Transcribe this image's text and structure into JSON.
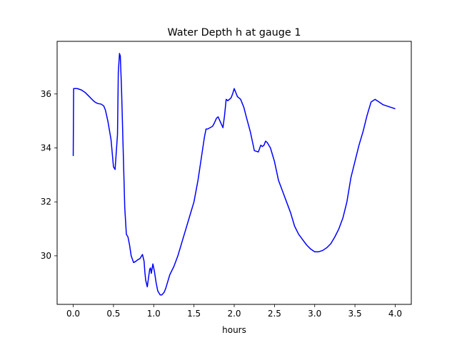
{
  "chart_data": {
    "type": "line",
    "title": "Water Depth h at gauge 1",
    "xlabel": "hours",
    "ylabel": "",
    "xlim": [
      -0.2,
      4.2
    ],
    "ylim": [
      28.2,
      37.95
    ],
    "xticks": [
      0.0,
      0.5,
      1.0,
      1.5,
      2.0,
      2.5,
      3.0,
      3.5,
      4.0
    ],
    "xtick_labels": [
      "0.0",
      "0.5",
      "1.0",
      "1.5",
      "2.0",
      "2.5",
      "3.0",
      "3.5",
      "4.0"
    ],
    "yticks": [
      30,
      32,
      34,
      36
    ],
    "ytick_labels": [
      "30",
      "32",
      "34",
      "36"
    ],
    "grid": false,
    "series": [
      {
        "color": "#0000ff",
        "x": [
          0.0,
          0.005,
          0.05,
          0.1,
          0.15,
          0.2,
          0.25,
          0.27,
          0.3,
          0.35,
          0.38,
          0.4,
          0.43,
          0.47,
          0.5,
          0.52,
          0.55,
          0.56,
          0.575,
          0.585,
          0.6,
          0.62,
          0.64,
          0.66,
          0.68,
          0.7,
          0.72,
          0.75,
          0.78,
          0.8,
          0.83,
          0.86,
          0.88,
          0.89,
          0.9,
          0.92,
          0.95,
          0.96,
          0.97,
          0.99,
          1.01,
          1.03,
          1.05,
          1.08,
          1.1,
          1.13,
          1.15,
          1.17,
          1.2,
          1.25,
          1.3,
          1.35,
          1.4,
          1.45,
          1.5,
          1.55,
          1.6,
          1.63,
          1.65,
          1.67,
          1.7,
          1.73,
          1.75,
          1.78,
          1.8,
          1.83,
          1.86,
          1.88,
          1.9,
          1.92,
          1.94,
          1.96,
          1.98,
          2.0,
          2.02,
          2.04,
          2.06,
          2.08,
          2.1,
          2.12,
          2.15,
          2.2,
          2.25,
          2.3,
          2.33,
          2.35,
          2.37,
          2.39,
          2.41,
          2.43,
          2.45,
          2.48,
          2.5,
          2.55,
          2.6,
          2.65,
          2.7,
          2.75,
          2.8,
          2.85,
          2.9,
          2.95,
          3.0,
          3.05,
          3.1,
          3.15,
          3.2,
          3.25,
          3.3,
          3.35,
          3.4,
          3.45,
          3.5,
          3.55,
          3.6,
          3.65,
          3.7,
          3.75,
          3.8,
          3.85,
          3.9,
          3.95,
          4.0
        ],
        "y": [
          33.7,
          36.2,
          36.2,
          36.15,
          36.05,
          35.9,
          35.75,
          35.7,
          35.65,
          35.62,
          35.55,
          35.4,
          35.0,
          34.3,
          33.3,
          33.2,
          34.5,
          36.8,
          37.5,
          37.4,
          36.2,
          34.0,
          31.8,
          30.8,
          30.7,
          30.4,
          30.0,
          29.75,
          29.8,
          29.85,
          29.9,
          30.05,
          29.8,
          29.4,
          29.1,
          28.85,
          29.5,
          29.55,
          29.35,
          29.7,
          29.4,
          29.0,
          28.7,
          28.55,
          28.55,
          28.65,
          28.8,
          29.0,
          29.3,
          29.6,
          30.0,
          30.5,
          31.0,
          31.5,
          32.0,
          32.8,
          33.8,
          34.4,
          34.7,
          34.7,
          34.75,
          34.8,
          34.9,
          35.1,
          35.15,
          34.95,
          34.75,
          35.2,
          35.8,
          35.75,
          35.8,
          35.85,
          36.0,
          36.2,
          36.05,
          35.9,
          35.85,
          35.8,
          35.65,
          35.5,
          35.15,
          34.6,
          33.9,
          33.85,
          34.1,
          34.05,
          34.1,
          34.25,
          34.2,
          34.1,
          34.0,
          33.7,
          33.5,
          32.8,
          32.4,
          32.0,
          31.6,
          31.1,
          30.8,
          30.6,
          30.4,
          30.25,
          30.15,
          30.15,
          30.2,
          30.3,
          30.45,
          30.7,
          31.0,
          31.4,
          32.0,
          32.9,
          33.5,
          34.1,
          34.6,
          35.2,
          35.7,
          35.8,
          35.7,
          35.6,
          35.55,
          35.5,
          35.45
        ]
      }
    ]
  }
}
